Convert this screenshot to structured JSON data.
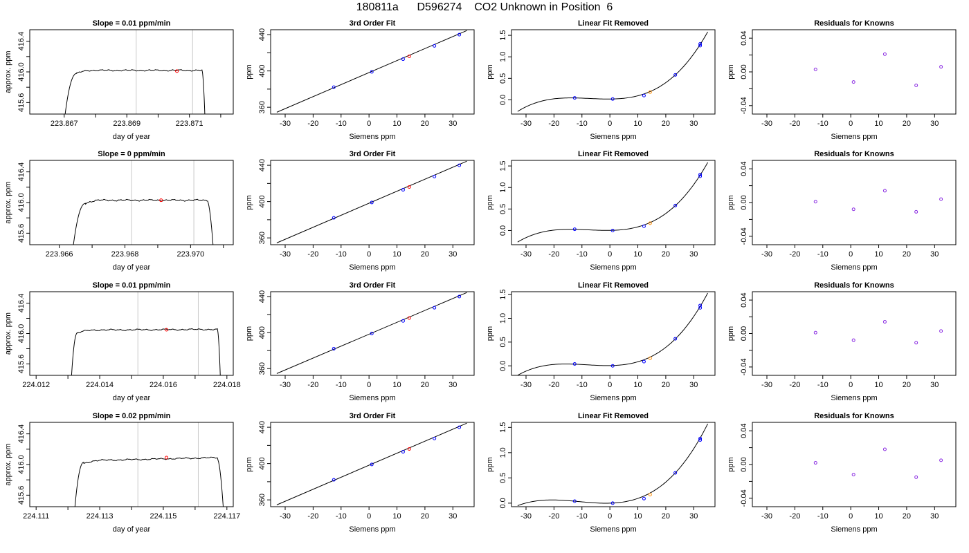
{
  "main_title": "180811a      D596274    CO2 Unknown in Position  6",
  "chart_data": [
    {
      "type": "line",
      "title": "Slope =  0.01  ppm/min",
      "xlabel": "day of year",
      "ylabel": "approx. ppm",
      "xlim": [
        223.8659,
        223.8724
      ],
      "ylim": [
        415.45,
        416.55
      ],
      "xticks": [
        223.867,
        223.868,
        223.869,
        223.87,
        223.871,
        223.872
      ],
      "xtick_labels": [
        "223.867",
        "",
        "223.869",
        "",
        "223.871",
        ""
      ],
      "yticks": [
        415.6,
        415.8,
        416.0,
        416.2,
        416.4
      ],
      "ytick_labels": [
        "415.6",
        "",
        "416.0",
        "",
        "416.4"
      ],
      "vlines": [
        223.8693,
        223.8711
      ],
      "trace": {
        "x_start": 223.867,
        "x_rise": 223.8674,
        "x_fall": 223.8714,
        "x_end": 223.8715,
        "plateau": 416.02,
        "slope_total": 0.0,
        "bottom": 415.45,
        "wiggle": 0.012
      },
      "marker": {
        "x": 223.8706,
        "y": 416.01
      }
    },
    {
      "type": "line",
      "title": "3rd Order Fit",
      "xlabel": "Siemens ppm",
      "ylabel": "ppm",
      "xlim": [
        -35.2,
        37.6
      ],
      "ylim": [
        352.5,
        445.4
      ],
      "xticks": [
        -30,
        -20,
        -10,
        0,
        10,
        20,
        30
      ],
      "yticks": [
        360,
        380,
        400,
        420,
        440
      ],
      "ytick_labels": [
        "360",
        "",
        "400",
        "",
        "440"
      ],
      "line": {
        "x": [
          -33,
          35
        ],
        "y": [
          354.5,
          444.5
        ]
      },
      "points_known": {
        "x": [
          -12.6,
          1.0,
          12.2,
          23.4,
          32.3
        ],
        "y": [
          382.1,
          399.0,
          413.0,
          427.6,
          440.0
        ]
      },
      "points_unknown": {
        "x": [
          14.4
        ],
        "y": [
          416.1
        ]
      }
    },
    {
      "type": "line",
      "title": "Linear Fit Removed",
      "xlabel": "Siemens ppm",
      "ylabel": "ppm",
      "xlim": [
        -35.2,
        37.6
      ],
      "ylim": [
        -0.33,
        1.63
      ],
      "xticks": [
        -30,
        -20,
        -10,
        0,
        10,
        20,
        30
      ],
      "yticks": [
        0.0,
        0.5,
        1.0,
        1.5
      ],
      "ytick_labels": [
        "0.0",
        "0.5",
        "1.0",
        "1.5"
      ],
      "cubic": {
        "x_range": [
          -33,
          35
        ],
        "y_at_ends": [
          -0.27,
          1.58
        ],
        "points_x": [
          -12.6,
          1.0,
          23.4
        ],
        "points_y": [
          0.045,
          0.02,
          0.58
        ]
      },
      "points_known": {
        "x": [
          -12.6,
          1.0,
          12.2,
          23.4,
          32.3,
          32.3
        ],
        "y": [
          0.045,
          0.02,
          0.1,
          0.58,
          1.26,
          1.3
        ]
      },
      "points_unknown": {
        "x": [
          14.4
        ],
        "y": [
          0.18
        ]
      }
    },
    {
      "type": "scatter",
      "title": "Residuals for Knowns",
      "xlabel": "Siemens ppm",
      "ylabel": "ppm",
      "xlim": [
        -35.2,
        37.6
      ],
      "ylim": [
        -0.05,
        0.05
      ],
      "xticks": [
        -30,
        -20,
        -10,
        0,
        10,
        20,
        30
      ],
      "yticks": [
        -0.04,
        -0.02,
        0.0,
        0.02,
        0.04
      ],
      "ytick_labels": [
        "-0.04",
        "",
        "0.00",
        "",
        "0.04"
      ],
      "points_known": {
        "x": [
          -12.6,
          1.0,
          12.2,
          23.4,
          32.3
        ],
        "y": [
          0.003,
          -0.012,
          0.021,
          -0.016,
          0.006
        ]
      }
    },
    {
      "type": "line",
      "title": "Slope =  0  ppm/min",
      "xlabel": "day of year",
      "ylabel": "approx. ppm",
      "xlim": [
        223.9651,
        223.9713
      ],
      "ylim": [
        415.45,
        416.55
      ],
      "xticks": [
        223.966,
        223.967,
        223.968,
        223.969,
        223.97,
        223.971
      ],
      "xtick_labels": [
        "223.966",
        "",
        "223.968",
        "",
        "223.970",
        ""
      ],
      "yticks": [
        415.6,
        415.8,
        416.0,
        416.2,
        416.4
      ],
      "ytick_labels": [
        "415.6",
        "",
        "416.0",
        "",
        "416.4"
      ],
      "vlines": [
        223.9682,
        223.9701
      ],
      "trace": {
        "x_start": 223.9664,
        "x_rise": 223.9668,
        "x_fall": 223.9705,
        "x_end": 223.9707,
        "plateau": 416.03,
        "slope_total": 0.0,
        "bottom": 415.45,
        "wiggle": 0.014
      },
      "marker": {
        "x": 223.9691,
        "y": 416.03
      }
    },
    {
      "type": "line",
      "title": "3rd Order Fit",
      "xlabel": "Siemens ppm",
      "ylabel": "ppm",
      "xlim": [
        -35.2,
        37.6
      ],
      "ylim": [
        352.5,
        445.4
      ],
      "xticks": [
        -30,
        -20,
        -10,
        0,
        10,
        20,
        30
      ],
      "yticks": [
        360,
        380,
        400,
        420,
        440
      ],
      "ytick_labels": [
        "360",
        "",
        "400",
        "",
        "440"
      ],
      "line": {
        "x": [
          -33,
          35
        ],
        "y": [
          354.5,
          444.5
        ]
      },
      "points_known": {
        "x": [
          -12.6,
          1.0,
          12.2,
          23.4,
          32.3
        ],
        "y": [
          382.1,
          399.0,
          413.0,
          427.6,
          440.0
        ]
      },
      "points_unknown": {
        "x": [
          14.4
        ],
        "y": [
          416.1
        ]
      }
    },
    {
      "type": "line",
      "title": "Linear Fit Removed",
      "xlabel": "Siemens ppm",
      "ylabel": "ppm",
      "xlim": [
        -35.2,
        37.6
      ],
      "ylim": [
        -0.33,
        1.63
      ],
      "xticks": [
        -30,
        -20,
        -10,
        0,
        10,
        20,
        30
      ],
      "yticks": [
        0.0,
        0.5,
        1.0,
        1.5
      ],
      "ytick_labels": [
        "0.0",
        "0.5",
        "1.0",
        "1.5"
      ],
      "cubic": {
        "x_range": [
          -33,
          35
        ],
        "y_at_ends": [
          -0.27,
          1.58
        ],
        "points_x": [
          -12.6,
          1.0,
          23.4
        ],
        "points_y": [
          0.03,
          0.0,
          0.58
        ]
      },
      "points_known": {
        "x": [
          -12.6,
          1.0,
          12.2,
          23.4,
          32.3,
          32.3
        ],
        "y": [
          0.03,
          0.0,
          0.1,
          0.58,
          1.26,
          1.3
        ]
      },
      "points_unknown": {
        "x": [
          14.4
        ],
        "y": [
          0.17
        ]
      }
    },
    {
      "type": "scatter",
      "title": "Residuals for Knowns",
      "xlabel": "Siemens ppm",
      "ylabel": "ppm",
      "xlim": [
        -35.2,
        37.6
      ],
      "ylim": [
        -0.05,
        0.05
      ],
      "xticks": [
        -30,
        -20,
        -10,
        0,
        10,
        20,
        30
      ],
      "yticks": [
        -0.04,
        -0.02,
        0.0,
        0.02,
        0.04
      ],
      "ytick_labels": [
        "-0.04",
        "",
        "0.00",
        "",
        "0.04"
      ],
      "points_known": {
        "x": [
          -12.6,
          1.0,
          12.2,
          23.4,
          32.3
        ],
        "y": [
          0.001,
          -0.008,
          0.014,
          -0.011,
          0.004
        ]
      }
    },
    {
      "type": "line",
      "title": "Slope =  0.01  ppm/min",
      "xlabel": "day of year",
      "ylabel": "approx. ppm",
      "xlim": [
        224.0118,
        224.0182
      ],
      "ylim": [
        415.45,
        416.55
      ],
      "xticks": [
        224.012,
        224.013,
        224.014,
        224.015,
        224.016,
        224.017,
        224.018
      ],
      "xtick_labels": [
        "224.012",
        "",
        "224.014",
        "",
        "224.016",
        "",
        "224.018"
      ],
      "yticks": [
        415.6,
        415.8,
        416.0,
        416.2,
        416.4
      ],
      "ytick_labels": [
        "415.6",
        "",
        "416.0",
        "",
        "416.4"
      ],
      "vlines": [
        224.0152,
        224.0171
      ],
      "trace": {
        "x_start": 224.0131,
        "x_rise": 224.0133,
        "x_fall": 224.0177,
        "x_end": 224.0178,
        "plateau": 416.05,
        "slope_total": 0.01,
        "bottom": 415.45,
        "wiggle": 0.012
      },
      "marker": {
        "x": 224.0161,
        "y": 416.05
      }
    },
    {
      "type": "line",
      "title": "3rd Order Fit",
      "xlabel": "Siemens ppm",
      "ylabel": "ppm",
      "xlim": [
        -35.2,
        37.6
      ],
      "ylim": [
        352.5,
        445.4
      ],
      "xticks": [
        -30,
        -20,
        -10,
        0,
        10,
        20,
        30
      ],
      "yticks": [
        360,
        380,
        400,
        420,
        440
      ],
      "ytick_labels": [
        "360",
        "",
        "400",
        "",
        "440"
      ],
      "line": {
        "x": [
          -33,
          35
        ],
        "y": [
          354.5,
          444.5
        ]
      },
      "points_known": {
        "x": [
          -12.6,
          1.0,
          12.2,
          23.4,
          32.3
        ],
        "y": [
          382.1,
          399.0,
          413.0,
          427.6,
          440.0
        ]
      },
      "points_unknown": {
        "x": [
          14.4
        ],
        "y": [
          416.1
        ]
      }
    },
    {
      "type": "line",
      "title": "Linear Fit Removed",
      "xlabel": "Siemens ppm",
      "ylabel": "ppm",
      "xlim": [
        -35.2,
        37.6
      ],
      "ylim": [
        -0.2,
        1.56
      ],
      "xticks": [
        -30,
        -20,
        -10,
        0,
        10,
        20,
        30
      ],
      "yticks": [
        0.0,
        0.5,
        1.0,
        1.5
      ],
      "ytick_labels": [
        "0.0",
        "0.5",
        "1.0",
        "1.5"
      ],
      "cubic": {
        "x_range": [
          -33,
          35
        ],
        "y_at_ends": [
          -0.2,
          1.53
        ],
        "points_x": [
          -12.6,
          1.0,
          23.4
        ],
        "points_y": [
          0.04,
          0.0,
          0.57
        ]
      },
      "points_known": {
        "x": [
          -12.6,
          1.0,
          12.2,
          23.4,
          32.3,
          32.3
        ],
        "y": [
          0.04,
          0.0,
          0.09,
          0.57,
          1.22,
          1.27
        ]
      },
      "points_unknown": {
        "x": [
          14.4
        ],
        "y": [
          0.16
        ]
      }
    },
    {
      "type": "scatter",
      "title": "Residuals for Knowns",
      "xlabel": "Siemens ppm",
      "ylabel": "ppm",
      "xlim": [
        -35.2,
        37.6
      ],
      "ylim": [
        -0.05,
        0.05
      ],
      "xticks": [
        -30,
        -20,
        -10,
        0,
        10,
        20,
        30
      ],
      "yticks": [
        -0.04,
        -0.02,
        0.0,
        0.02,
        0.04
      ],
      "ytick_labels": [
        "-0.04",
        "",
        "0.00",
        "",
        "0.04"
      ],
      "points_known": {
        "x": [
          -12.6,
          1.0,
          12.2,
          23.4,
          32.3
        ],
        "y": [
          0.001,
          -0.008,
          0.014,
          -0.011,
          0.003
        ]
      }
    },
    {
      "type": "line",
      "title": "Slope =  0.02  ppm/min",
      "xlabel": "day of year",
      "ylabel": "approx. ppm",
      "xlim": [
        224.1108,
        224.1172
      ],
      "ylim": [
        415.45,
        416.55
      ],
      "xticks": [
        224.111,
        224.112,
        224.113,
        224.114,
        224.115,
        224.116,
        224.117
      ],
      "xtick_labels": [
        "224.111",
        "",
        "224.113",
        "",
        "224.115",
        "",
        "224.117"
      ],
      "yticks": [
        415.6,
        415.8,
        416.0,
        416.2,
        416.4
      ],
      "ytick_labels": [
        "415.6",
        "",
        "416.0",
        "",
        "416.4"
      ],
      "vlines": [
        224.1142,
        224.1161
      ],
      "trace": {
        "x_start": 224.1122,
        "x_rise": 224.1125,
        "x_fall": 224.1167,
        "x_end": 224.1169,
        "plateau": 416.07,
        "slope_total": 0.04,
        "bottom": 415.45,
        "wiggle": 0.012
      },
      "marker": {
        "x": 224.1151,
        "y": 416.09
      }
    },
    {
      "type": "line",
      "title": "3rd Order Fit",
      "xlabel": "Siemens ppm",
      "ylabel": "ppm",
      "xlim": [
        -35.2,
        37.6
      ],
      "ylim": [
        352.5,
        445.4
      ],
      "xticks": [
        -30,
        -20,
        -10,
        0,
        10,
        20,
        30
      ],
      "yticks": [
        360,
        380,
        400,
        420,
        440
      ],
      "ytick_labels": [
        "360",
        "",
        "400",
        "",
        "440"
      ],
      "line": {
        "x": [
          -33,
          35
        ],
        "y": [
          354.5,
          444.5
        ]
      },
      "points_known": {
        "x": [
          -12.6,
          1.0,
          12.2,
          23.4,
          32.3
        ],
        "y": [
          382.1,
          399.0,
          413.0,
          427.6,
          440.0
        ]
      },
      "points_unknown": {
        "x": [
          14.4
        ],
        "y": [
          416.1
        ]
      }
    },
    {
      "type": "line",
      "title": "Linear Fit Removed",
      "xlabel": "Siemens ppm",
      "ylabel": "ppm",
      "xlim": [
        -35.2,
        37.6
      ],
      "ylim": [
        -0.07,
        1.6
      ],
      "xticks": [
        -30,
        -20,
        -10,
        0,
        10,
        20,
        30
      ],
      "yticks": [
        0.0,
        0.5,
        1.0,
        1.5
      ],
      "ytick_labels": [
        "0.0",
        "0.5",
        "1.0",
        "1.5"
      ],
      "cubic": {
        "x_range": [
          -33,
          35
        ],
        "y_at_ends": [
          -0.05,
          1.57
        ],
        "points_x": [
          -12.6,
          1.0,
          23.4
        ],
        "points_y": [
          0.04,
          0.0,
          0.6
        ]
      },
      "points_known": {
        "x": [
          -12.6,
          1.0,
          12.2,
          23.4,
          32.3,
          32.3
        ],
        "y": [
          0.04,
          0.0,
          0.09,
          0.6,
          1.25,
          1.28
        ]
      },
      "points_unknown": {
        "x": [
          14.4
        ],
        "y": [
          0.17
        ]
      }
    },
    {
      "type": "scatter",
      "title": "Residuals for Knowns",
      "xlabel": "Siemens ppm",
      "ylabel": "ppm",
      "xlim": [
        -35.2,
        37.6
      ],
      "ylim": [
        -0.05,
        0.05
      ],
      "xticks": [
        -30,
        -20,
        -10,
        0,
        10,
        20,
        30
      ],
      "yticks": [
        -0.04,
        -0.02,
        0.0,
        0.02,
        0.04
      ],
      "ytick_labels": [
        "-0.04",
        "",
        "0.00",
        "",
        "0.04"
      ],
      "points_known": {
        "x": [
          -12.6,
          1.0,
          12.2,
          23.4,
          32.3
        ],
        "y": [
          0.002,
          -0.012,
          0.018,
          -0.015,
          0.005
        ]
      }
    }
  ],
  "colors": {
    "axis": "#000000",
    "vline": "#c8c8c8",
    "known_point": "#0000ff",
    "unknown_point": "#ff0000",
    "unknown_point_cubic": "#ff8c00",
    "residual_point": "#8a2be2",
    "curve": "#000000"
  }
}
